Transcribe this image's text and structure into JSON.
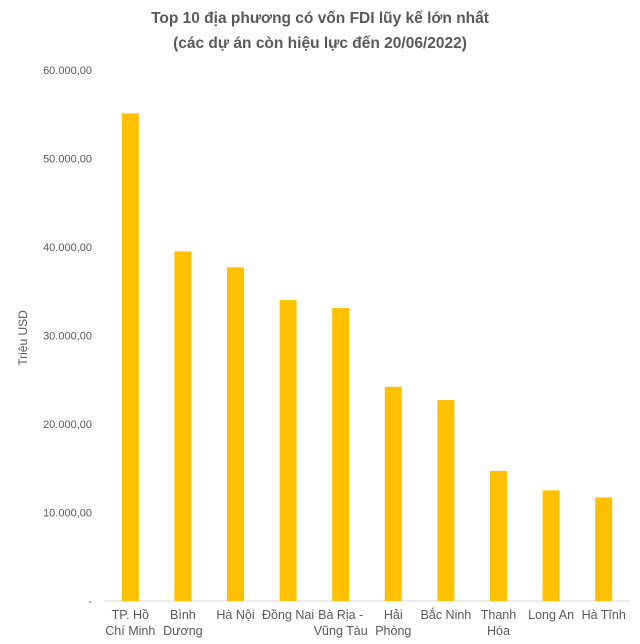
{
  "chart_data": {
    "type": "bar",
    "title": "Top 10 địa phương có vốn FDI lũy kế lớn nhất",
    "subtitle": "(các dự án còn hiệu lực đến 20/06/2022)",
    "ylabel": "Triệu USD",
    "xlabel": "",
    "categories": [
      [
        "TP. Hồ",
        "Chí Minh"
      ],
      [
        "Bình",
        "Dương"
      ],
      [
        "Hà Nội"
      ],
      [
        "Đồng Nai"
      ],
      [
        "Bà Rịa -",
        "Vũng Tàu"
      ],
      [
        "Hải",
        "Phòng"
      ],
      [
        "Bắc Ninh"
      ],
      [
        "Thanh",
        "Hóa"
      ],
      [
        "Long An"
      ],
      [
        "Hà Tĩnh"
      ]
    ],
    "values": [
      55100,
      39500,
      37700,
      34000,
      33100,
      24200,
      22700,
      14700,
      12500,
      11700
    ],
    "ylim": [
      0,
      60000
    ],
    "yticks": [
      "-",
      "10.000,00",
      "20.000,00",
      "30.000,00",
      "40.000,00",
      "50.000,00",
      "60.000,00"
    ],
    "bar_color": "#FFC000",
    "grid": false
  }
}
